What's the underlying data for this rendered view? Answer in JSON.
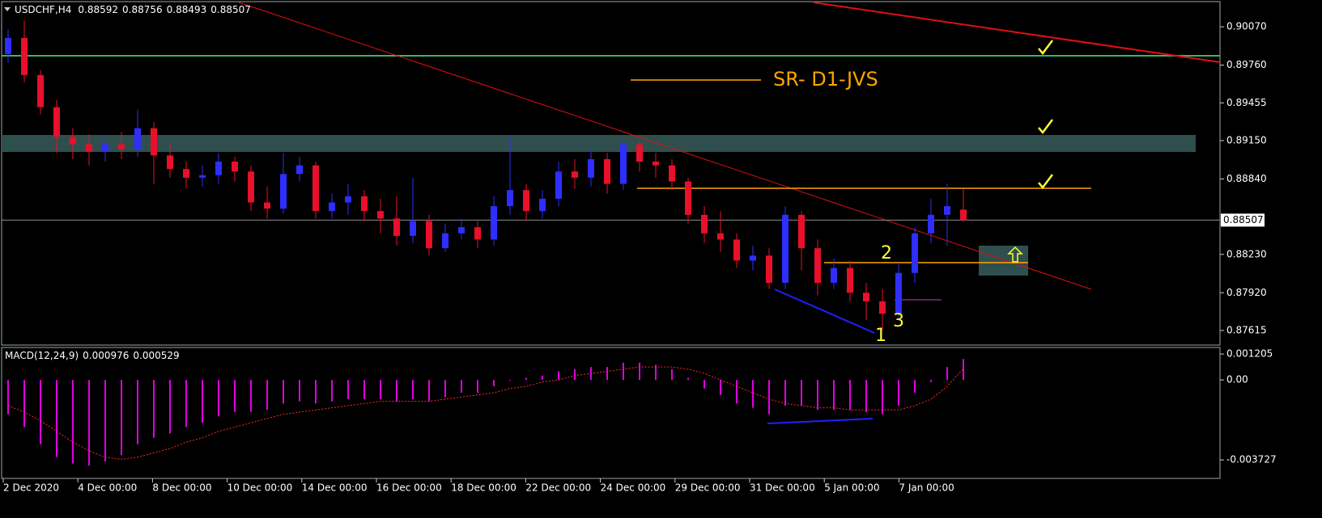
{
  "chart_data": [
    {
      "type": "candlestick",
      "title": "USDCHF,H4",
      "up_color": "#2e2eff",
      "down_color": "#e8102a",
      "open": [
        0.8985,
        0.8998,
        0.8968,
        0.8942,
        0.8918,
        0.8912,
        0.8906,
        0.8912,
        0.8908,
        0.8925,
        0.8903,
        0.8892,
        0.8885,
        0.8887,
        0.8898,
        0.889,
        0.8865,
        0.886,
        0.8888,
        0.8895,
        0.8858,
        0.8865,
        0.887,
        0.8858,
        0.8852,
        0.8838,
        0.885,
        0.8828,
        0.884,
        0.8845,
        0.8835,
        0.8862,
        0.8875,
        0.8858,
        0.8868,
        0.889,
        0.8885,
        0.89,
        0.888,
        0.8912,
        0.8898,
        0.8895,
        0.8882,
        0.8855,
        0.884,
        0.8835,
        0.8818,
        0.8822,
        0.88,
        0.8855,
        0.8828,
        0.88,
        0.8812,
        0.8792,
        0.8785,
        0.8775,
        0.8808,
        0.884,
        0.8855,
        0.88592
      ],
      "high": [
        0.9005,
        0.9012,
        0.8972,
        0.8948,
        0.8925,
        0.892,
        0.8918,
        0.8922,
        0.894,
        0.893,
        0.8912,
        0.8898,
        0.8895,
        0.8905,
        0.8902,
        0.8895,
        0.8878,
        0.8905,
        0.8902,
        0.8898,
        0.8872,
        0.888,
        0.8875,
        0.8868,
        0.887,
        0.8885,
        0.8855,
        0.8848,
        0.8852,
        0.885,
        0.887,
        0.8918,
        0.888,
        0.8875,
        0.8898,
        0.89,
        0.8908,
        0.8905,
        0.8918,
        0.8915,
        0.8905,
        0.89,
        0.8885,
        0.8862,
        0.8858,
        0.884,
        0.883,
        0.8828,
        0.8862,
        0.8858,
        0.8835,
        0.882,
        0.8818,
        0.88,
        0.8795,
        0.8815,
        0.8845,
        0.8868,
        0.888,
        0.88756
      ],
      "low": [
        0.8978,
        0.8962,
        0.8936,
        0.8905,
        0.89,
        0.8895,
        0.8898,
        0.89,
        0.8902,
        0.888,
        0.8885,
        0.8876,
        0.8878,
        0.888,
        0.8882,
        0.8858,
        0.8852,
        0.8856,
        0.8882,
        0.8852,
        0.8852,
        0.8855,
        0.885,
        0.884,
        0.883,
        0.8832,
        0.8822,
        0.8825,
        0.8835,
        0.8828,
        0.883,
        0.8855,
        0.885,
        0.8852,
        0.8862,
        0.8876,
        0.8878,
        0.8872,
        0.8875,
        0.889,
        0.8885,
        0.8875,
        0.8848,
        0.8832,
        0.8825,
        0.8812,
        0.881,
        0.8795,
        0.8795,
        0.881,
        0.879,
        0.8795,
        0.8785,
        0.877,
        0.8762,
        0.877,
        0.88,
        0.8832,
        0.883,
        0.88493
      ],
      "close": [
        0.8998,
        0.8968,
        0.8942,
        0.8918,
        0.8912,
        0.8906,
        0.8912,
        0.8908,
        0.8925,
        0.8903,
        0.8892,
        0.8885,
        0.8887,
        0.8898,
        0.889,
        0.8865,
        0.886,
        0.8888,
        0.8895,
        0.8858,
        0.8865,
        0.887,
        0.8858,
        0.8852,
        0.8838,
        0.885,
        0.8828,
        0.884,
        0.8845,
        0.8835,
        0.8862,
        0.8875,
        0.8858,
        0.8868,
        0.889,
        0.8885,
        0.89,
        0.888,
        0.8912,
        0.8898,
        0.8895,
        0.8882,
        0.8855,
        0.884,
        0.8835,
        0.8818,
        0.8822,
        0.88,
        0.8855,
        0.8828,
        0.88,
        0.8812,
        0.8792,
        0.8785,
        0.8775,
        0.8808,
        0.884,
        0.8855,
        0.8862,
        0.88507
      ],
      "ylim": [
        0.87497,
        0.90267
      ],
      "yticks": [
        {
          "value": 0.9007,
          "label": "0.90070"
        },
        {
          "value": 0.8976,
          "label": "0.89760"
        },
        0.89455,
        {
          "value": 0.8915,
          "label": "0.89150"
        },
        {
          "value": 0.8884,
          "label": "0.88840"
        },
        {
          "value": 0.8823,
          "label": "0.88230"
        },
        {
          "value": 0.8792,
          "label": "0.87920"
        },
        0.87615
      ],
      "price_line": true,
      "xtick_labels": [
        "2 Dec 2020",
        "4 Dec 00:00",
        "8 Dec 00:00",
        "10 Dec 00:00",
        "14 Dec 00:00",
        "16 Dec 00:00",
        "18 Dec 00:00",
        "22 Dec 00:00",
        "24 Dec 00:00",
        "29 Dec 00:00",
        "31 Dec 00:00",
        "5 Jan 00:00",
        "7 Jan 00:00"
      ],
      "annotations": [
        "SR- D1-JVS",
        "1",
        "2",
        "3"
      ]
    },
    {
      "type": "macd",
      "title": "MACD(12,24,9)",
      "series": [
        {
          "color": "#e000e0",
          "values": [
            -0.0016,
            -0.0022,
            -0.003,
            -0.0036,
            -0.0039,
            -0.004,
            -0.0038,
            -0.0035,
            -0.003,
            -0.0027,
            -0.0025,
            -0.0022,
            -0.002,
            -0.0017,
            -0.0015,
            -0.0015,
            -0.0014,
            -0.0011,
            -0.001,
            -0.0011,
            -0.001,
            -0.0009,
            -0.0009,
            -0.0009,
            -0.001,
            -0.0009,
            -0.001,
            -0.0008,
            -0.0006,
            -0.0006,
            -0.0003,
            0,
            0.0001,
            0.0002,
            0.0004,
            0.0005,
            0.0006,
            0.0006,
            0.0008,
            0.0008,
            0.0007,
            0.0005,
            0.0001,
            -0.0004,
            -0.0007,
            -0.0011,
            -0.0013,
            -0.0016,
            -0.0012,
            -0.0012,
            -0.0014,
            -0.0014,
            -0.0014,
            -0.0015,
            -0.0016,
            -0.0012,
            -0.0006,
            -0.0001,
            0.0006,
            0.000976
          ]
        },
        {
          "color": "#ff2a2a",
          "values": [
            -0.0012,
            -0.0015,
            -0.0019,
            -0.0024,
            -0.0029,
            -0.0033,
            -0.0036,
            -0.0037,
            -0.0036,
            -0.0034,
            -0.0032,
            -0.0029,
            -0.0027,
            -0.0024,
            -0.0022,
            -0.002,
            -0.0018,
            -0.0016,
            -0.0015,
            -0.0014,
            -0.0013,
            -0.0012,
            -0.0011,
            -0.001,
            -0.001,
            -0.001,
            -0.001,
            -0.0009,
            -0.0008,
            -0.0007,
            -0.0006,
            -0.0004,
            -0.0003,
            -0.0001,
            0,
            0.0002,
            0.0003,
            0.0004,
            0.0005,
            0.0006,
            0.0006,
            0.0006,
            0.0005,
            0.0003,
            0,
            -0.0003,
            -0.0006,
            -0.0009,
            -0.0011,
            -0.0012,
            -0.0013,
            -0.0013,
            -0.0014,
            -0.0014,
            -0.0014,
            -0.0014,
            -0.0012,
            -0.0009,
            -0.0003,
            0.000529
          ]
        }
      ],
      "ylim": [
        -0.00459,
        0.00151
      ],
      "yticks": [
        0.001205,
        {
          "value": 0,
          "label": "0.00"
        },
        -0.003727
      ]
    }
  ]
}
